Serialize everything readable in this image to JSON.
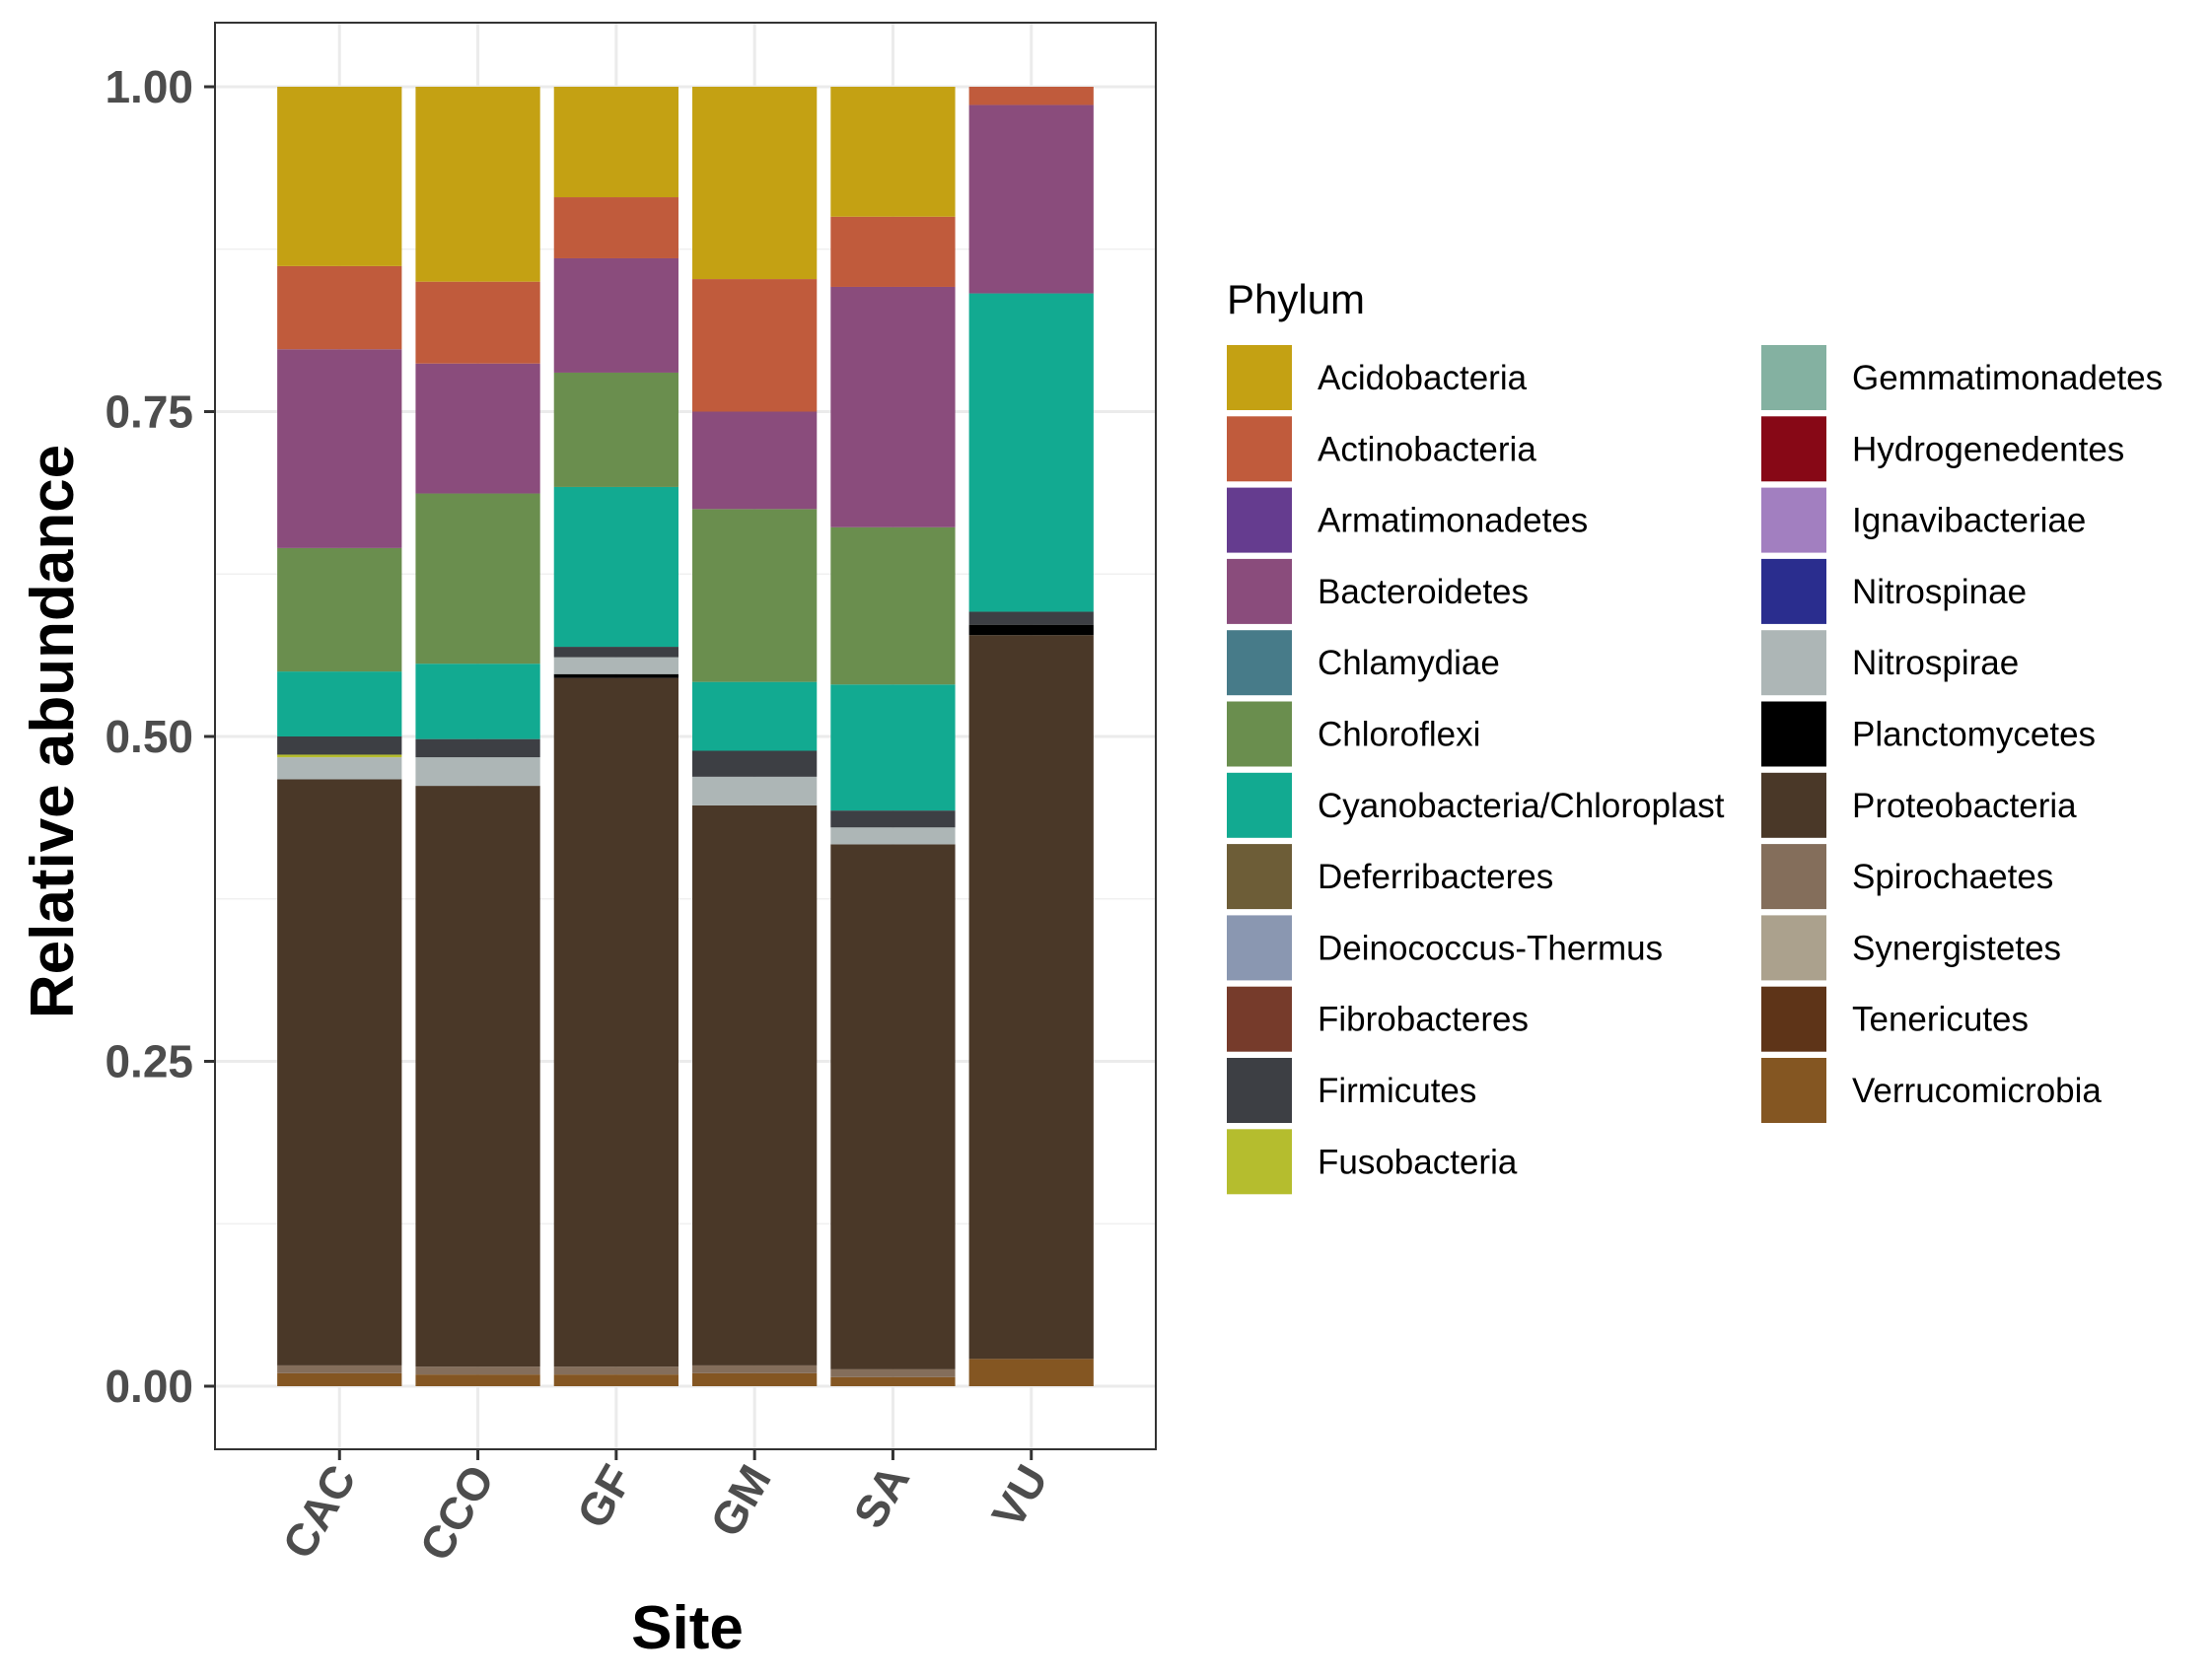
{
  "chart_data": {
    "type": "bar",
    "stacked": true,
    "xlabel": "Site",
    "ylabel": "Relative abundance",
    "ylim": [
      0,
      1
    ],
    "yticks": [
      "0.00",
      "0.25",
      "0.50",
      "0.75",
      "1.00"
    ],
    "grid": true,
    "legend_title": "Phylum",
    "legend_position": "right",
    "categories": [
      "CAC",
      "CCO",
      "GF",
      "GM",
      "SA",
      "VU"
    ],
    "series": [
      {
        "name": "Verrucomicrobia",
        "color": "#845622",
        "values": [
          0.01,
          0.009,
          0.009,
          0.01,
          0.007,
          0.021
        ]
      },
      {
        "name": "Tenericutes",
        "color": "#5e3418",
        "values": [
          0,
          0,
          0,
          0,
          0,
          0
        ]
      },
      {
        "name": "Synergistetes",
        "color": "#aba18d",
        "values": [
          0,
          0,
          0,
          0,
          0,
          0
        ]
      },
      {
        "name": "Spirochaetes",
        "color": "#846e5b",
        "values": [
          0.006,
          0.006,
          0.006,
          0.006,
          0.006,
          0
        ]
      },
      {
        "name": "Proteobacteria",
        "color": "#4a3828",
        "values": [
          0.451,
          0.447,
          0.53,
          0.431,
          0.404,
          0.557
        ]
      },
      {
        "name": "Planctomycetes",
        "color": "#000000",
        "values": [
          0,
          0,
          0.003,
          0,
          0,
          0.008
        ]
      },
      {
        "name": "Nitrospirae",
        "color": "#adb6b6",
        "values": [
          0.017,
          0.022,
          0.013,
          0.022,
          0.013,
          0
        ]
      },
      {
        "name": "Nitrospinae",
        "color": "#2a2d8e",
        "values": [
          0,
          0,
          0,
          0,
          0,
          0
        ]
      },
      {
        "name": "Ignavibacteriae",
        "color": "#a27fc0",
        "values": [
          0,
          0,
          0,
          0,
          0,
          0
        ]
      },
      {
        "name": "Hydrogenedentes",
        "color": "#870816",
        "values": [
          0,
          0,
          0,
          0,
          0,
          0
        ]
      },
      {
        "name": "Gemmatimonadetes",
        "color": "#84b1a1",
        "values": [
          0,
          0,
          0,
          0,
          0,
          0
        ]
      },
      {
        "name": "Fusobacteria",
        "color": "#b5bd2e",
        "values": [
          0.002,
          0,
          0,
          0,
          0,
          0
        ]
      },
      {
        "name": "Firmicutes",
        "color": "#3d3f44",
        "values": [
          0.014,
          0.014,
          0.008,
          0.02,
          0.013,
          0.01
        ]
      },
      {
        "name": "Fibrobacteres",
        "color": "#763b2b",
        "values": [
          0,
          0,
          0,
          0,
          0,
          0
        ]
      },
      {
        "name": "Deinococcus-Thermus",
        "color": "#8a97b1",
        "values": [
          0,
          0,
          0,
          0,
          0,
          0
        ]
      },
      {
        "name": "Deferribacteres",
        "color": "#6d5d37",
        "values": [
          0,
          0,
          0,
          0,
          0,
          0
        ]
      },
      {
        "name": "Cyanobacteria/Chloroplast",
        "color": "#12aa91",
        "values": [
          0.05,
          0.058,
          0.123,
          0.053,
          0.097,
          0.245
        ]
      },
      {
        "name": "Chloroflexi",
        "color": "#6a8e4e",
        "values": [
          0.095,
          0.131,
          0.088,
          0.133,
          0.121,
          0
        ]
      },
      {
        "name": "Chlamydiae",
        "color": "#477b89",
        "values": [
          0,
          0,
          0,
          0,
          0,
          0
        ]
      },
      {
        "name": "Bacteroidetes",
        "color": "#8a4c7c",
        "values": [
          0.153,
          0.1,
          0.088,
          0.075,
          0.185,
          0.145
        ]
      },
      {
        "name": "Armatimonadetes",
        "color": "#653c8f",
        "values": [
          0,
          0,
          0,
          0,
          0,
          0
        ]
      },
      {
        "name": "Actinobacteria",
        "color": "#c05b3c",
        "values": [
          0.064,
          0.063,
          0.047,
          0.102,
          0.054,
          0.014
        ]
      },
      {
        "name": "Acidobacteria",
        "color": "#c4a113",
        "values": [
          0.138,
          0.15,
          0.085,
          0.148,
          0.1,
          0
        ]
      }
    ],
    "legend_order": [
      "Acidobacteria",
      "Actinobacteria",
      "Armatimonadetes",
      "Bacteroidetes",
      "Chlamydiae",
      "Chloroflexi",
      "Cyanobacteria/Chloroplast",
      "Deferribacteres",
      "Deinococcus-Thermus",
      "Fibrobacteres",
      "Firmicutes",
      "Fusobacteria",
      "Gemmatimonadetes",
      "Hydrogenedentes",
      "Ignavibacteriae",
      "Nitrospinae",
      "Nitrospirae",
      "Planctomycetes",
      "Proteobacteria",
      "Spirochaetes",
      "Synergistetes",
      "Tenericutes",
      "Verrucomicrobia"
    ]
  }
}
